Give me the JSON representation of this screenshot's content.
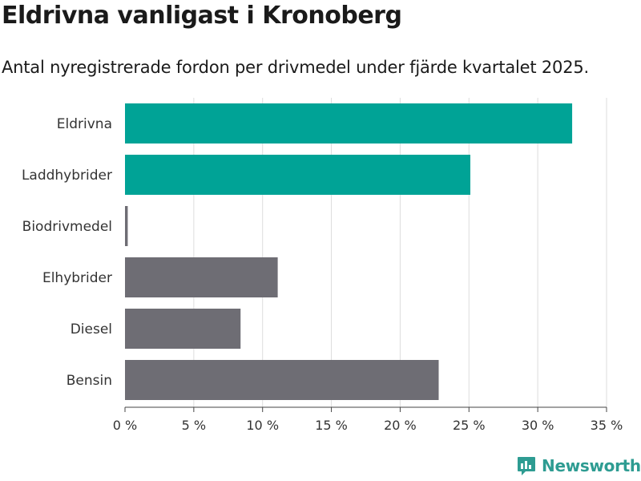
{
  "title": "Eldrivna vanligast i Kronoberg",
  "subtitle": "Antal nyregistrerade fordon per drivmedel under fjärde kvartalet 2025.",
  "brand": {
    "name": "Newsworthy",
    "icon": "newsworthy-logo-icon"
  },
  "colors": {
    "highlight": "#00a396",
    "default": "#6e6d74",
    "grid": "#dddddd",
    "brand": "#2e9c92"
  },
  "chart_data": {
    "type": "bar",
    "orientation": "horizontal",
    "categories": [
      "Eldrivna",
      "Laddhybrider",
      "Biodrivmedel",
      "Elhybrider",
      "Diesel",
      "Bensin"
    ],
    "values": [
      32.5,
      25.1,
      0.2,
      11.1,
      8.4,
      22.8
    ],
    "highlighted": [
      "Eldrivna",
      "Laddhybrider"
    ],
    "x_ticks": [
      0,
      5,
      10,
      15,
      20,
      25,
      30,
      35
    ],
    "x_tick_labels": [
      "0 %",
      "5 %",
      "10 %",
      "15 %",
      "20 %",
      "25 %",
      "30 %",
      "35 %"
    ],
    "xlim": [
      0,
      35
    ],
    "xlabel": "",
    "ylabel": "",
    "grid": true
  }
}
